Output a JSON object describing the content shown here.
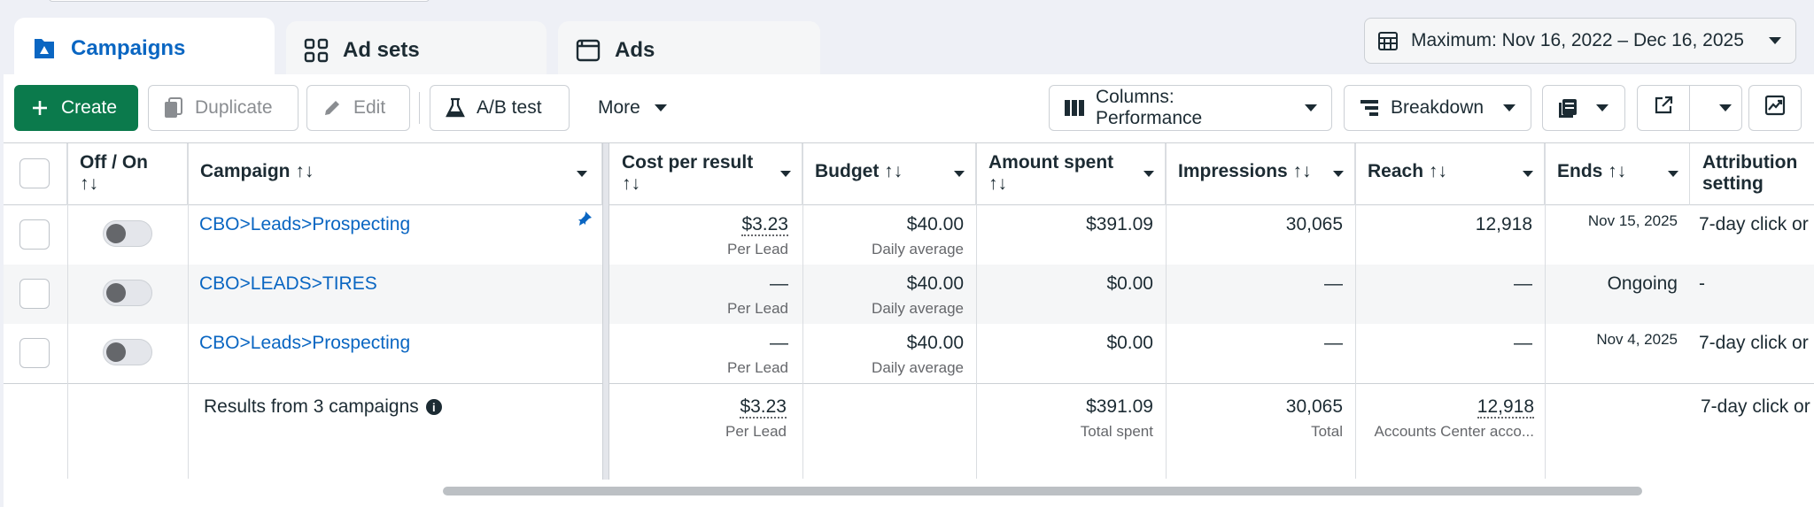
{
  "tabs": [
    {
      "label": "Campaigns",
      "icon": "flag-icon"
    },
    {
      "label": "Ad sets",
      "icon": "grid-icon"
    },
    {
      "label": "Ads",
      "icon": "ad-icon"
    }
  ],
  "date_range": {
    "label": "Maximum: Nov 16, 2022 – Dec 16, 2025"
  },
  "toolbar": {
    "create": "Create",
    "duplicate": "Duplicate",
    "edit": "Edit",
    "ab_test": "A/B test",
    "more": "More",
    "columns": "Columns: Performance",
    "breakdown": "Breakdown"
  },
  "columns": {
    "offon": "Off / On",
    "offon_sort": "↑↓",
    "campaign": "Campaign ↑↓",
    "cost": "Cost per result",
    "cost_sort": "↑↓",
    "budget": "Budget ↑↓",
    "spent": "Amount spent",
    "spent_sort": "↑↓",
    "impressions": "Impressions ↑↓",
    "reach": "Reach ↑↓",
    "ends": "Ends ↑↓",
    "attribution": "Attribution",
    "attribution2": "setting"
  },
  "rows": [
    {
      "name": "CBO>Leads>Prospecting",
      "cost": "$3.23",
      "cost_sub": "Per Lead",
      "budget": "$40.00",
      "budget_sub": "Daily average",
      "spent": "$391.09",
      "impressions": "30,065",
      "reach": "12,918",
      "ends": "Nov 15, 2025",
      "attribution": "7-day click or"
    },
    {
      "name": "CBO>LEADS>TIRES",
      "cost": "—",
      "cost_sub": "Per Lead",
      "budget": "$40.00",
      "budget_sub": "Daily average",
      "spent": "$0.00",
      "impressions": "—",
      "reach": "—",
      "ends": "Ongoing",
      "attribution": "-"
    },
    {
      "name": "CBO>Leads>Prospecting",
      "cost": "—",
      "cost_sub": "Per Lead",
      "budget": "$40.00",
      "budget_sub": "Daily average",
      "spent": "$0.00",
      "impressions": "—",
      "reach": "—",
      "ends": "Nov 4, 2025",
      "attribution": "7-day click or"
    }
  ],
  "totals": {
    "label": "Results from 3 campaigns",
    "cost": "$3.23",
    "cost_sub": "Per Lead",
    "spent": "$391.09",
    "spent_sub": "Total spent",
    "impressions": "30,065",
    "impressions_sub": "Total",
    "reach": "12,918",
    "reach_sub": "Accounts Center acco...",
    "attribution": "7-day click or"
  },
  "colors": {
    "accent": "#0a66c2",
    "create": "#0b7a4c"
  }
}
